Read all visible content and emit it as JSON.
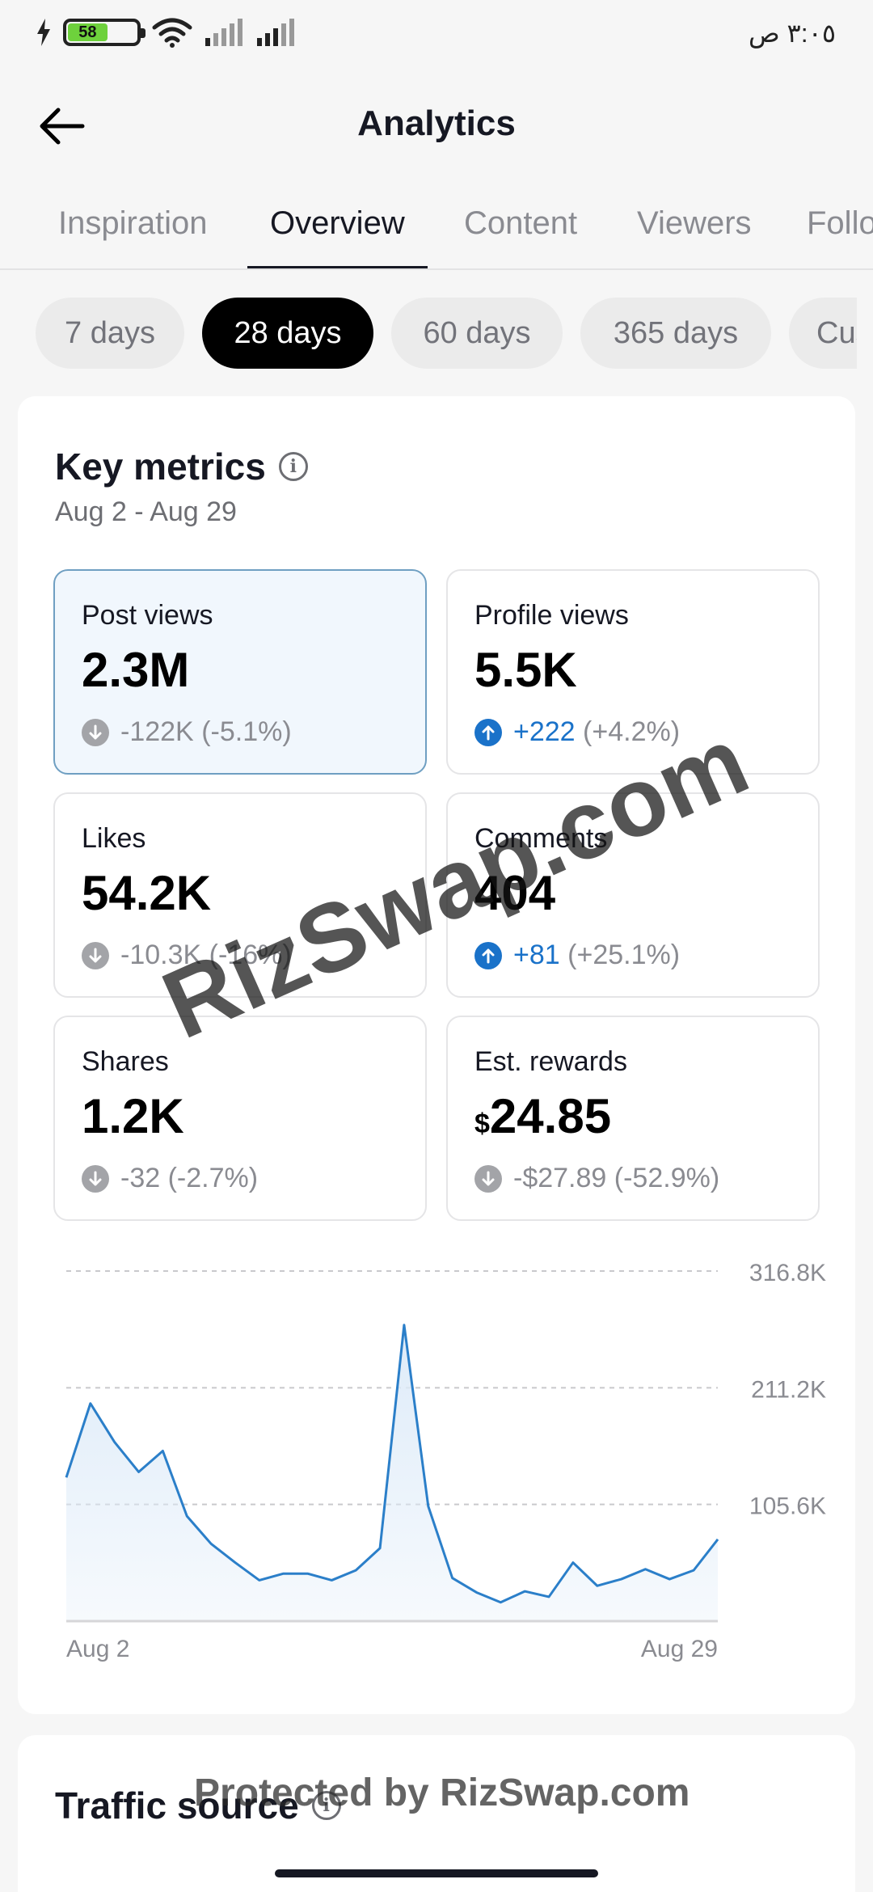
{
  "status_bar": {
    "battery": "58",
    "time": "٣:٠٥ ص"
  },
  "header": {
    "title": "Analytics"
  },
  "tabs": [
    {
      "label": "Inspiration"
    },
    {
      "label": "Overview"
    },
    {
      "label": "Content"
    },
    {
      "label": "Viewers"
    },
    {
      "label": "Followers"
    }
  ],
  "active_tab": "Overview",
  "periods": [
    {
      "label": "7 days"
    },
    {
      "label": "28 days"
    },
    {
      "label": "60 days"
    },
    {
      "label": "365 days"
    },
    {
      "label": "Custom"
    }
  ],
  "active_period": "28 days",
  "key_metrics": {
    "title": "Key metrics",
    "date_range": "Aug 2 - Aug 29",
    "metrics": [
      {
        "label": "Post views",
        "value": "2.3M",
        "delta": "-122K",
        "delta_pct": "(-5.1%)",
        "direction": "down"
      },
      {
        "label": "Profile views",
        "value": "5.5K",
        "delta": "+222",
        "delta_pct": "(+4.2%)",
        "direction": "up"
      },
      {
        "label": "Likes",
        "value": "54.2K",
        "delta": "-10.3K",
        "delta_pct": "(-16%)",
        "direction": "down"
      },
      {
        "label": "Comments",
        "value": "404",
        "delta": "+81",
        "delta_pct": "(+25.1%)",
        "direction": "up"
      },
      {
        "label": "Shares",
        "value": "1.2K",
        "delta": "-32",
        "delta_pct": "(-2.7%)",
        "direction": "down"
      },
      {
        "label": "Est. rewards",
        "currency": "$",
        "value": "24.85",
        "delta": "-$27.89",
        "delta_pct": "(-52.9%)",
        "direction": "down"
      }
    ]
  },
  "chart_data": {
    "type": "area",
    "x": [
      "Aug 2",
      "Aug 3",
      "Aug 4",
      "Aug 5",
      "Aug 6",
      "Aug 7",
      "Aug 8",
      "Aug 9",
      "Aug 10",
      "Aug 11",
      "Aug 12",
      "Aug 13",
      "Aug 14",
      "Aug 15",
      "Aug 16",
      "Aug 17",
      "Aug 18",
      "Aug 19",
      "Aug 20",
      "Aug 21",
      "Aug 22",
      "Aug 23",
      "Aug 24",
      "Aug 25",
      "Aug 26",
      "Aug 27",
      "Aug 28",
      "Aug 29"
    ],
    "values": [
      130000,
      197000,
      162000,
      135000,
      154000,
      95000,
      70000,
      53000,
      37000,
      43000,
      43000,
      37000,
      46000,
      66000,
      268000,
      104000,
      39000,
      26000,
      17000,
      27000,
      22000,
      53000,
      32000,
      38000,
      47000,
      38000,
      46000,
      74000
    ],
    "x_tick_labels": [
      "Aug 2",
      "Aug 29"
    ],
    "y_ticks": [
      "316.8K",
      "211.2K",
      "105.6K"
    ],
    "y_tick_values": [
      316800,
      211200,
      105600
    ],
    "ylim": [
      0,
      316800
    ],
    "grid": "dashed-horizontal",
    "line_color": "#2b7fc9",
    "fill_color": "#dceaf8"
  },
  "traffic": {
    "title": "Traffic source"
  },
  "watermarks": {
    "diagonal": "RizSwap.com",
    "bottom": "Protected by RizSwap.com"
  },
  "colors": {
    "accent_blue": "#1a72c9",
    "selected_card_bg": "#f1f7fd"
  }
}
